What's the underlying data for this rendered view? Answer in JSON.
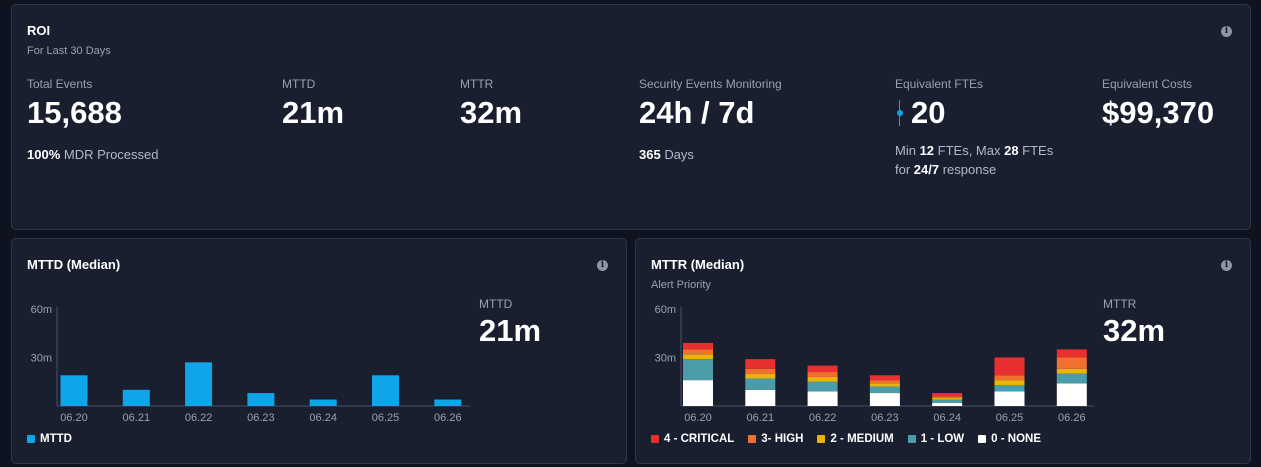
{
  "roi": {
    "title": "ROI",
    "subtitle": "For Last 30 Days",
    "total_events": {
      "label": "Total Events",
      "value": "15,688",
      "note_bold": "100%",
      "note_text": " MDR Processed"
    },
    "mttd": {
      "label": "MTTD",
      "value": "21m"
    },
    "mttr": {
      "label": "MTTR",
      "value": "32m"
    },
    "monitoring": {
      "label": "Security Events Monitoring",
      "value": "24h / 7d",
      "note_bold": "365",
      "note_text": " Days"
    },
    "ftes": {
      "label": "Equivalent FTEs",
      "value": "20",
      "note_min_pre": "Min ",
      "note_min": "12",
      "note_max_pre": " FTEs, Max ",
      "note_max": "28",
      "note_max_post": " FTEs",
      "note_line2_pre": "for ",
      "note_line2_bold": "24/7",
      "note_line2_post": " response"
    },
    "costs": {
      "label": "Equivalent Costs",
      "value": "$99,370"
    }
  },
  "mttd_panel": {
    "title": "MTTD (Median)",
    "side_label": "MTTD",
    "side_value": "21m",
    "legend_label": "MTTD",
    "bar_color": "#0ea5e9"
  },
  "mttr_panel": {
    "title": "MTTR (Median)",
    "subtitle": "Alert Priority",
    "side_label": "MTTR",
    "side_value": "32m"
  },
  "chart_data": [
    {
      "type": "bar",
      "categories": [
        "06.20",
        "06.21",
        "06.22",
        "06.23",
        "06.24",
        "06.25",
        "06.26"
      ],
      "series": [
        {
          "name": "MTTD",
          "values": [
            19,
            10,
            27,
            8,
            4,
            19,
            4
          ],
          "color": "#0ea5e9"
        }
      ],
      "ylim": [
        0,
        60
      ],
      "yticks": [
        "60m",
        "30m"
      ],
      "ytick_values": [
        60,
        30
      ],
      "legend": "bottom-left"
    },
    {
      "type": "bar",
      "stacked": true,
      "categories": [
        "06.20",
        "06.21",
        "06.22",
        "06.23",
        "06.24",
        "06.25",
        "06.26"
      ],
      "series": [
        {
          "name": "0 - NONE",
          "values": [
            16,
            10,
            9,
            8,
            2,
            9,
            14
          ],
          "color": "#ffffff"
        },
        {
          "name": "1 - LOW",
          "values": [
            13,
            7,
            6,
            4,
            2,
            4,
            6
          ],
          "color": "#4a9ca8"
        },
        {
          "name": "2 - MEDIUM",
          "values": [
            3,
            3,
            3,
            2,
            1,
            3,
            3
          ],
          "color": "#eab308"
        },
        {
          "name": "3- HIGH",
          "values": [
            3,
            3,
            3,
            2,
            1,
            3,
            7
          ],
          "color": "#f07030"
        },
        {
          "name": "4 - CRITICAL",
          "values": [
            4,
            6,
            4,
            3,
            2,
            11,
            5
          ],
          "color": "#e83030"
        }
      ],
      "legend_order": [
        "4 - CRITICAL",
        "3- HIGH",
        "2 - MEDIUM",
        "1 - LOW",
        "0 - NONE"
      ],
      "ylim": [
        0,
        60
      ],
      "yticks": [
        "60m",
        "30m"
      ],
      "ytick_values": [
        60,
        30
      ],
      "legend": "bottom-left"
    }
  ]
}
